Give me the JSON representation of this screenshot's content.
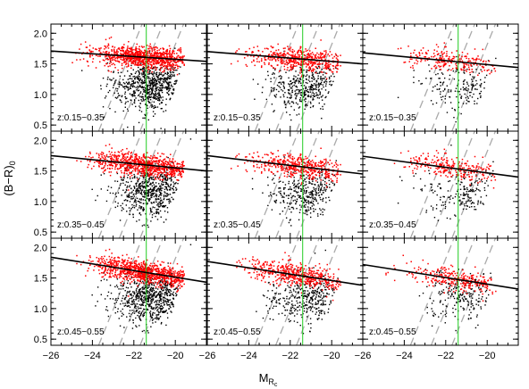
{
  "figure": {
    "xlabel": "M",
    "xlabel_sub": "R",
    "xlabel_subsub": "c",
    "ylabel": "(B−R)",
    "ylabel_sub": "0"
  },
  "chart_data": {
    "type": "scatter",
    "layout": "3x3 grid of panels; columns share x-axis, rows share redshift bin",
    "xlim": [
      -26,
      -18.5
    ],
    "ylim": [
      0.4,
      2.15
    ],
    "x_ticks": [
      -26,
      -24,
      -22,
      -20
    ],
    "y_ticks": [
      0.5,
      1.0,
      1.5,
      2.0
    ],
    "x_tick_labels": [
      "−26",
      "−24",
      "−22",
      "−20"
    ],
    "y_tick_labels": [
      "0.5",
      "1.0",
      "1.5",
      "2.0"
    ],
    "magnitude_cut_x": -21.4,
    "magnitude_cut_color": "#22cc22",
    "red_sequence_color": "#ff0000",
    "blue_cloud_color": "#000000",
    "fit_line_color": "#000000",
    "dashed_line_color": "#aaaaaa",
    "dashed_lines_x_at_ybottom": [
      -23.7,
      -22.7,
      -21.7
    ],
    "dashed_lines_x_at_ytop": [
      -21.6,
      -20.6,
      -19.6
    ],
    "panels": [
      {
        "label": "z:0.15−0.35",
        "row": 0,
        "col": 0,
        "fit": [
          [
            -26,
            1.71
          ],
          [
            -18.5,
            1.54
          ]
        ],
        "density": 1.0
      },
      {
        "label": "z:0.15−0.35",
        "row": 0,
        "col": 1,
        "fit": [
          [
            -26,
            1.7
          ],
          [
            -18.5,
            1.5
          ]
        ],
        "density": 0.55
      },
      {
        "label": "z:0.15−0.35",
        "row": 0,
        "col": 2,
        "fit": [
          [
            -26,
            1.68
          ],
          [
            -18.5,
            1.44
          ]
        ],
        "density": 0.25
      },
      {
        "label": "z:0.35−0.45",
        "row": 1,
        "col": 0,
        "fit": [
          [
            -26,
            1.75
          ],
          [
            -18.5,
            1.5
          ]
        ],
        "density": 0.85
      },
      {
        "label": "z:0.35−0.45",
        "row": 1,
        "col": 1,
        "fit": [
          [
            -26,
            1.75
          ],
          [
            -18.5,
            1.45
          ]
        ],
        "density": 0.5
      },
      {
        "label": "z:0.35−0.45",
        "row": 1,
        "col": 2,
        "fit": [
          [
            -26,
            1.74
          ],
          [
            -18.5,
            1.4
          ]
        ],
        "density": 0.28
      },
      {
        "label": "z:0.45−0.55",
        "row": 2,
        "col": 0,
        "fit": [
          [
            -26,
            1.84
          ],
          [
            -18.5,
            1.43
          ]
        ],
        "density": 1.0
      },
      {
        "label": "z:0.45−0.55",
        "row": 2,
        "col": 1,
        "fit": [
          [
            -26,
            1.77
          ],
          [
            -18.5,
            1.38
          ]
        ],
        "density": 0.55
      },
      {
        "label": "z:0.45−0.55",
        "row": 2,
        "col": 2,
        "fit": [
          [
            -26,
            1.72
          ],
          [
            -18.5,
            1.32
          ]
        ],
        "density": 0.3
      }
    ]
  }
}
